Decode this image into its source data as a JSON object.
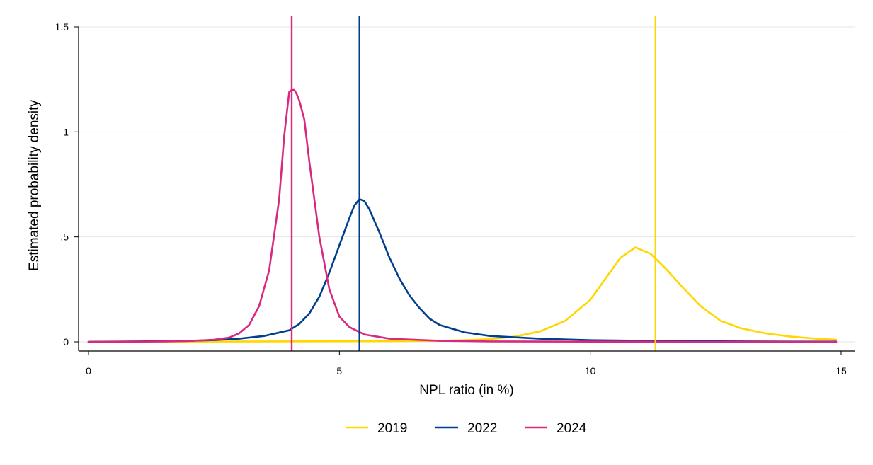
{
  "chart_data": {
    "type": "line",
    "xlabel": "NPL ratio (in %)",
    "ylabel": "Estimated probability density",
    "xlim": [
      0,
      15
    ],
    "ylim": [
      0,
      1.5
    ],
    "x_ticks": [
      0,
      5,
      10,
      15
    ],
    "x_tick_labels": [
      "0",
      "5",
      "10",
      "15"
    ],
    "y_ticks": [
      0,
      0.5,
      1,
      1.5
    ],
    "y_tick_labels": [
      "0",
      ".5",
      "1",
      "1.5"
    ],
    "grid": "horizontal",
    "legend_position": "bottom-center",
    "series": [
      {
        "name": "2019",
        "color": "#FFD700",
        "vline": 11.3,
        "x": [
          0,
          6,
          7,
          7.5,
          8,
          8.5,
          9,
          9.5,
          10,
          10.3,
          10.6,
          10.9,
          11.2,
          11.5,
          11.8,
          12.2,
          12.6,
          13,
          13.5,
          14,
          14.5,
          14.9
        ],
        "y": [
          0,
          0.003,
          0.005,
          0.008,
          0.013,
          0.025,
          0.05,
          0.1,
          0.2,
          0.3,
          0.4,
          0.45,
          0.42,
          0.35,
          0.27,
          0.17,
          0.1,
          0.065,
          0.04,
          0.025,
          0.015,
          0.01
        ]
      },
      {
        "name": "2022",
        "color": "#003F8C",
        "vline": 5.4,
        "x": [
          0,
          1,
          2,
          2.5,
          3,
          3.5,
          4,
          4.2,
          4.4,
          4.6,
          4.8,
          5,
          5.2,
          5.3,
          5.4,
          5.5,
          5.6,
          5.8,
          6,
          6.2,
          6.4,
          6.6,
          6.8,
          7,
          7.5,
          8,
          9,
          10,
          11,
          12,
          13,
          14,
          14.9
        ],
        "y": [
          0,
          0.002,
          0.005,
          0.008,
          0.015,
          0.028,
          0.055,
          0.085,
          0.135,
          0.215,
          0.33,
          0.46,
          0.59,
          0.65,
          0.68,
          0.67,
          0.63,
          0.52,
          0.4,
          0.3,
          0.22,
          0.16,
          0.11,
          0.08,
          0.045,
          0.028,
          0.015,
          0.008,
          0.005,
          0.003,
          0.002,
          0.001,
          0.001
        ]
      },
      {
        "name": "2024",
        "color": "#D8297F",
        "vline": 4.05,
        "x": [
          0,
          1,
          1.5,
          2,
          2.5,
          2.8,
          3,
          3.2,
          3.4,
          3.6,
          3.8,
          3.9,
          4,
          4.05,
          4.1,
          4.15,
          4.2,
          4.3,
          4.4,
          4.6,
          4.8,
          5,
          5.2,
          5.5,
          6,
          7,
          8,
          10,
          12,
          14.9
        ],
        "y": [
          0,
          0.001,
          0.002,
          0.004,
          0.01,
          0.02,
          0.04,
          0.08,
          0.17,
          0.34,
          0.68,
          0.98,
          1.19,
          1.2,
          1.2,
          1.18,
          1.15,
          1.06,
          0.86,
          0.5,
          0.25,
          0.12,
          0.07,
          0.035,
          0.015,
          0.005,
          0.002,
          0.001,
          0,
          0
        ]
      }
    ]
  }
}
